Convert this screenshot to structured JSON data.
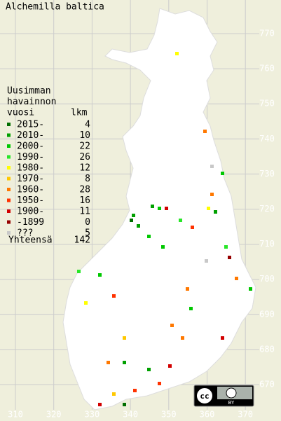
{
  "map": {
    "title": "Alchemilla baltica",
    "yticks": [
      770,
      760,
      750,
      740,
      730,
      720,
      710,
      700,
      690,
      680,
      670
    ],
    "xticks": [
      310,
      320,
      330,
      340,
      350,
      360,
      370
    ],
    "legend": {
      "heading": [
        "Uusimman",
        "havainnon",
        "vuosi"
      ],
      "count_heading": "lkm",
      "entries": [
        {
          "label": "2015-",
          "count": 4,
          "color": "#006e00"
        },
        {
          "label": "2010-",
          "count": 10,
          "color": "#00a000"
        },
        {
          "label": "2000-",
          "count": 22,
          "color": "#00c800"
        },
        {
          "label": "1990-",
          "count": 26,
          "color": "#28e628"
        },
        {
          "label": "1980-",
          "count": 12,
          "color": "#ffff00"
        },
        {
          "label": "1970-",
          "count": 8,
          "color": "#ffc800"
        },
        {
          "label": "1960-",
          "count": 28,
          "color": "#ff7800"
        },
        {
          "label": "1950-",
          "count": 16,
          "color": "#ff3200"
        },
        {
          "label": "1900-",
          "count": 11,
          "color": "#d20000"
        },
        {
          "label": "-1899",
          "count": 0,
          "color": "#960000"
        },
        {
          "label": "???",
          "count": 5,
          "color": "#c8c8c8"
        }
      ],
      "total_label": "Yhteensä",
      "total": 142
    },
    "license": {
      "cc": "cc",
      "by": "BY"
    }
  }
}
